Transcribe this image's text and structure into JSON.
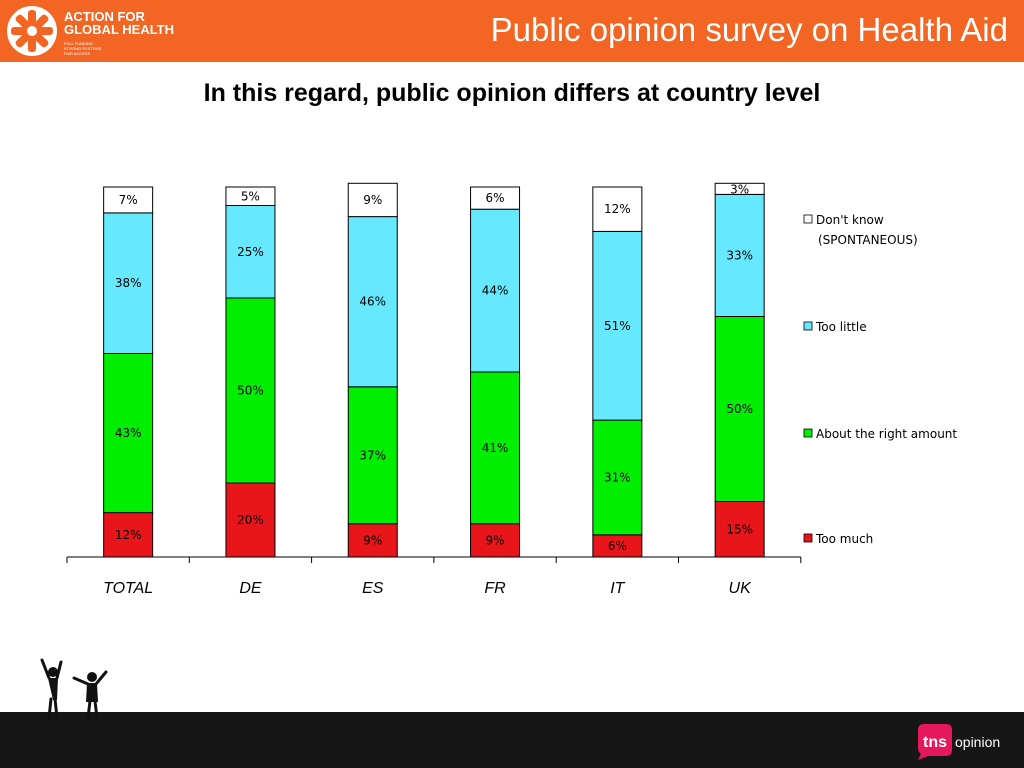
{
  "header": {
    "title": "Public opinion survey on Health Aid",
    "org_name": "ACTION FOR\nGLOBAL HEALTH",
    "org_tagline": "FULL FUNDING\nSTRONG SYSTEMS\nFAIR ACCESS"
  },
  "slide_title": "In this regard, public opinion differs at country level",
  "brand": {
    "tns": "tns",
    "opinion": "opinion"
  },
  "colors": {
    "header": "#f26522",
    "too_much": "#e8161b",
    "about_right": "#00ee00",
    "too_little": "#66e8ff",
    "dont_know": "#ffffff"
  },
  "chart_data": {
    "type": "bar",
    "stacked": true,
    "categories": [
      "TOTAL",
      "DE",
      "ES",
      "FR",
      "IT",
      "UK"
    ],
    "series": [
      {
        "name": "Too much",
        "values": [
          12,
          20,
          9,
          9,
          6,
          15
        ],
        "labels": [
          "12%",
          "20%",
          "9%",
          "9%",
          "6%",
          "15%"
        ]
      },
      {
        "name": "About the right amount",
        "values": [
          43,
          50,
          37,
          41,
          31,
          50
        ],
        "labels": [
          "43%",
          "50%",
          "37%",
          "41%",
          "31%",
          "50%"
        ]
      },
      {
        "name": "Too little",
        "values": [
          38,
          25,
          46,
          44,
          51,
          33
        ],
        "labels": [
          "38%",
          "25%",
          "46%",
          "44%",
          "51%",
          "33%"
        ]
      },
      {
        "name": "Don't know (SPONTANEOUS)",
        "legend_lines": [
          "Don't know",
          "(SPONTANEOUS)"
        ],
        "values": [
          7,
          5,
          9,
          6,
          12,
          3
        ],
        "labels": [
          "7%",
          "5%",
          "9%",
          "6%",
          "12%",
          "3%"
        ]
      }
    ],
    "ylim": [
      0,
      100
    ],
    "legend_position": "right",
    "grid": false
  }
}
